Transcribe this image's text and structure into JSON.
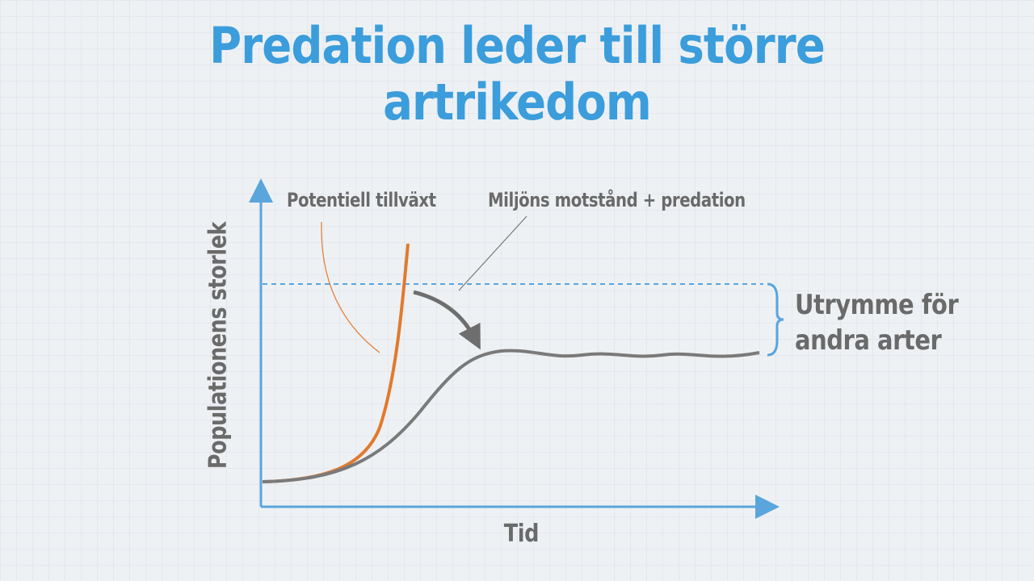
{
  "title": "Predation leder till större artrikedom",
  "y_axis_label": "Populationens storlek",
  "x_axis_label": "Tid",
  "annotations": [
    "Potentiell tillväxt",
    "Miljöns motstånd + predation"
  ],
  "side_label": "Utrymme för andra arter"
}
